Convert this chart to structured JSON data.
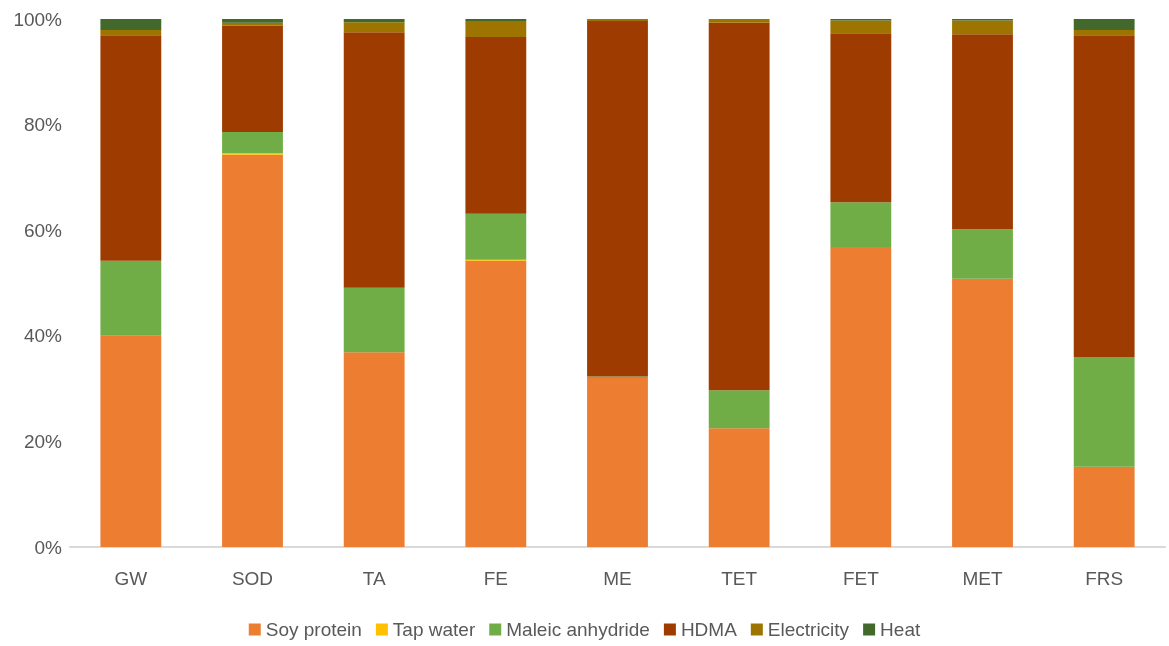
{
  "chart_data": {
    "type": "bar",
    "stacked": true,
    "categories": [
      "GW",
      "SOD",
      "TA",
      "FE",
      "ME",
      "TET",
      "FET",
      "MET",
      "FRS"
    ],
    "series": [
      {
        "name": "Soy protein",
        "color": "#ed7d31",
        "values": [
          40,
          74.3,
          36.9,
          54.2,
          32,
          22.5,
          56.8,
          50.8,
          15.2
        ]
      },
      {
        "name": "Tap water",
        "color": "#ffc000",
        "values": [
          0,
          0.3,
          0,
          0.2,
          0,
          0,
          0,
          0,
          0
        ]
      },
      {
        "name": "Maleic anhydride",
        "color": "#70ad47",
        "values": [
          14.2,
          4,
          12.2,
          8.7,
          0.3,
          7.2,
          8.5,
          9.4,
          20.8
        ]
      },
      {
        "name": "HDMA",
        "color": "#9e3b00",
        "values": [
          42.7,
          20.1,
          48.4,
          33.5,
          67.3,
          69.6,
          32,
          36.9,
          60.9
        ]
      },
      {
        "name": "Electricity",
        "color": "#9e7400",
        "values": [
          1,
          0.6,
          1.9,
          3,
          0.4,
          0.7,
          2.4,
          2.6,
          1
        ]
      },
      {
        "name": "Heat",
        "color": "#43682b",
        "values": [
          2.1,
          0.7,
          0.6,
          0.4,
          0,
          0,
          0.3,
          0.3,
          2.1
        ]
      }
    ],
    "ylim": [
      0,
      100
    ],
    "yticks": [
      {
        "value": 0,
        "label": "0%"
      },
      {
        "value": 20,
        "label": "20%"
      },
      {
        "value": 40,
        "label": "40%"
      },
      {
        "value": 60,
        "label": "60%"
      },
      {
        "value": 80,
        "label": "80%"
      },
      {
        "value": 100,
        "label": "100%"
      }
    ],
    "grid": false,
    "legend": "bottom"
  }
}
